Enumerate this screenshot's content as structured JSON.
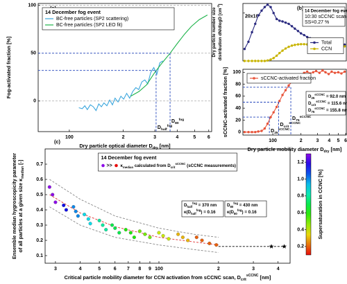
{
  "chart_data": [
    {
      "type": "line",
      "panel_label": "(a)",
      "legend_title": "14 December fog event",
      "legend": "upper left",
      "xlabel": [
        {
          "t": "Dry particle optical diameter "
        },
        {
          "t": "D"
        },
        {
          "t": "dry",
          "s": "sub"
        },
        {
          "t": " [nm]"
        }
      ],
      "ylabel": [
        [
          {
            "t": "Fog-activated fraction [%]"
          }
        ]
      ],
      "xlog": true,
      "xlim": [
        67,
        623
      ],
      "xticks": [
        100,
        {
          "value": 200,
          "label": "2"
        },
        {
          "value": 300,
          "label": "3"
        },
        {
          "value": 400,
          "label": "4"
        },
        {
          "value": 500,
          "label": "5"
        },
        {
          "value": 600,
          "label": "6"
        }
      ],
      "ylim": [
        -32,
        102
      ],
      "yticks": [
        0,
        50,
        100
      ],
      "grid": true,
      "series": [
        {
          "name": "BC-free particles (SP2 scattering)",
          "color": "#3aa6dd",
          "x": [
            113,
            118,
            122,
            126,
            131,
            136,
            141,
            146,
            151,
            156,
            162,
            168,
            174,
            180,
            187,
            194,
            201,
            209,
            217,
            226,
            235,
            244,
            254,
            264,
            274,
            285,
            296,
            308,
            320,
            333
          ],
          "values": [
            -7,
            -8,
            -5,
            -9,
            -4,
            -6,
            -10,
            -3,
            -6,
            -2,
            -5,
            1,
            -4,
            3,
            -1,
            5,
            2,
            8,
            3,
            10,
            14,
            12,
            20,
            22,
            18,
            30,
            35,
            28,
            40,
            42
          ]
        },
        {
          "name": "BC-free particles (SP2 LEO fit)",
          "color": "#1db34a",
          "x": [
            220,
            245,
            270,
            300,
            330,
            365,
            400,
            440,
            480,
            530,
            590
          ],
          "values": [
            5,
            10,
            17,
            30,
            40,
            50,
            60,
            70,
            78,
            85,
            90
          ]
        }
      ],
      "markers": [
        {
          "x": 305,
          "y": 32,
          "label": [
            {
              "t": "D"
            },
            {
              "t": "half",
              "s": "sub"
            },
            {
              "t": "fog",
              "s": "sup"
            }
          ]
        },
        {
          "x": 365,
          "y": 50,
          "label": [
            {
              "t": "D"
            },
            {
              "t": "80",
              "s": "sub"
            },
            {
              "t": "fog",
              "s": "sup"
            }
          ]
        }
      ],
      "marker_color": "#2244bb"
    },
    {
      "type": "line",
      "panel_label": "(b)",
      "legend": "right",
      "ylabel": [
        [
          {
            "t": "Dry particle number size"
          }
        ],
        [
          {
            "t": "distribution dN/dlog"
          },
          {
            "t": "D"
          },
          {
            "t": " [cm"
          },
          {
            "t": "-3",
            "s": "sup"
          },
          {
            "t": "]"
          }
        ]
      ],
      "note": [
        "14 December fog event",
        "10:30 sCCNC scan",
        "SS=0.27 %"
      ],
      "xlog": true,
      "xlim": [
        48,
        609
      ],
      "ylim": [
        0,
        24000
      ],
      "yticks": [
        {
          "value": 20000,
          "label": "20x10³"
        }
      ],
      "series": [
        {
          "name": "Total",
          "color": "#2b2b80",
          "markers": true,
          "x": [
            50,
            55,
            60,
            65,
            70,
            76,
            82,
            88,
            95,
            102,
            110,
            118,
            127,
            137,
            148,
            160,
            172,
            186,
            200,
            216,
            233,
            250,
            270,
            290,
            315,
            340,
            365,
            395,
            425,
            460,
            500,
            540,
            585
          ],
          "values": [
            5000,
            8000,
            12000,
            15500,
            19000,
            21000,
            22500,
            23500,
            22500,
            20000,
            17500,
            16800,
            16500,
            16000,
            15500,
            14500,
            13500,
            12500,
            11500,
            10800,
            10000,
            9500,
            9000,
            8600,
            8300,
            8000,
            7800,
            7500,
            7300,
            7100,
            7000,
            6900,
            6800
          ]
        },
        {
          "name": "CCN",
          "color": "#c8b400",
          "markers": true,
          "x": [
            50,
            55,
            60,
            65,
            70,
            76,
            82,
            88,
            95,
            102,
            110,
            118,
            127,
            137,
            148,
            160,
            172,
            186,
            200,
            216,
            233,
            250,
            270,
            290,
            315,
            340,
            365,
            395,
            425,
            460,
            500,
            540,
            585
          ],
          "values": [
            0,
            0,
            0,
            0,
            0,
            0,
            0,
            200,
            600,
            1200,
            2200,
            3300,
            4300,
            5200,
            5900,
            6400,
            6700,
            6900,
            7000,
            7000,
            6900,
            6800,
            6800,
            6700,
            6700,
            6600,
            6600,
            6500,
            6500,
            6400,
            6300,
            6200,
            6100
          ]
        }
      ]
    },
    {
      "type": "line",
      "legend": "upper left",
      "xlabel": [
        {
          "t": "Dry particle mobility diameter "
        },
        {
          "t": "D"
        },
        {
          "t": "dry",
          "s": "sub"
        },
        {
          "t": "  [nm]"
        }
      ],
      "ylabel": [
        [
          {
            "t": "sCCNC-activated fraction [%]"
          }
        ]
      ],
      "xlog": true,
      "xlim": [
        48,
        609
      ],
      "xticks": [
        100,
        {
          "value": 200,
          "label": "2"
        },
        {
          "value": 300,
          "label": "3"
        },
        {
          "value": 400,
          "label": "4"
        },
        {
          "value": 500,
          "label": "5"
        },
        {
          "value": 600,
          "label": "6"
        }
      ],
      "ylim": [
        -5,
        105
      ],
      "yticks": [
        0,
        20,
        40,
        60,
        80,
        100
      ],
      "series": [
        {
          "name": "sCCNC-activated fraction",
          "color": "#e8543a",
          "markers": true,
          "x": [
            50,
            55,
            60,
            65,
            70,
            76,
            82,
            88,
            95,
            102,
            110,
            118,
            127,
            137,
            148,
            160,
            172,
            186,
            200,
            216,
            233,
            250,
            270,
            290,
            315,
            340,
            365,
            395,
            425,
            460,
            500,
            540,
            585
          ],
          "values": [
            0,
            0,
            0,
            0,
            1,
            2,
            6,
            14,
            25,
            33,
            42,
            52,
            62,
            70,
            78,
            84,
            89,
            93,
            96,
            99,
            101,
            98,
            100,
            102,
            99,
            103,
            100,
            97,
            101,
            99,
            100,
            98,
            101
          ]
        }
      ],
      "markers": [
        {
          "x": 92.0,
          "y": 25,
          "label": [
            {
              "t": "D"
            },
            {
              "t": "25",
              "s": "sub"
            },
            {
              "t": "sCCNC",
              "s": "sup"
            }
          ],
          "box": [
            {
              "t": "D"
            },
            {
              "t": "25",
              "s": "sub"
            },
            {
              "t": "sCCNC",
              "s": "sup"
            },
            {
              "t": " = 92.0 nm"
            }
          ]
        },
        {
          "x": 115.6,
          "y": 50,
          "label": [
            {
              "t": "D"
            },
            {
              "t": "crit",
              "s": "sub"
            },
            {
              "t": "sCCNC",
              "s": "sup"
            }
          ],
          "box": [
            {
              "t": "D"
            },
            {
              "t": "crit",
              "s": "sub"
            },
            {
              "t": "sCCNC",
              "s": "sup"
            },
            {
              "t": " = 115.6 nm"
            }
          ]
        },
        {
          "x": 155.8,
          "y": 75,
          "label": [
            {
              "t": "D"
            },
            {
              "t": "75",
              "s": "sub"
            },
            {
              "t": "sCCNC",
              "s": "sup"
            }
          ],
          "box": [
            {
              "t": "D"
            },
            {
              "t": "75",
              "s": "sub"
            },
            {
              "t": "sCCNC",
              "s": "sup"
            },
            {
              "t": " = 155.8 nm"
            }
          ]
        }
      ],
      "marker_color": "#2244bb"
    },
    {
      "type": "scatter",
      "panel_label": "(c)",
      "legend": "upper center",
      "legend_title": "14 December fog event",
      "legend_symbol": ">>",
      "legend_text": [
        {
          "t": "κ"
        },
        {
          "t": "median",
          "s": "sub"
        },
        {
          "t": " calculated from "
        },
        {
          "t": "D"
        },
        {
          "t": "crit",
          "s": "sub"
        },
        {
          "t": "sCCNC",
          "s": "sup"
        },
        {
          "t": " (sCCNC measurements)"
        }
      ],
      "xlabel": [
        {
          "t": "Critical particle mobility diameter for CCN activation from sCCNC scan, "
        },
        {
          "t": "D"
        },
        {
          "t": "crit",
          "s": "sub"
        },
        {
          "t": "sCCNC",
          "s": "sup"
        },
        {
          "t": "  [nm]"
        }
      ],
      "ylabel": [
        [
          {
            "t": "Ensemble median hygroscopicity parameter"
          }
        ],
        [
          {
            "t": "of all particles at a given size "
          },
          {
            "t": "κ"
          },
          {
            "t": "median",
            "s": "sub"
          },
          {
            "t": " [-]"
          }
        ]
      ],
      "xlog": true,
      "xlim": [
        26.6,
        460
      ],
      "xticks": [
        {
          "value": 30,
          "label": "3"
        },
        {
          "value": 40,
          "label": "4"
        },
        {
          "value": 50,
          "label": "5"
        },
        {
          "value": 60,
          "label": "6"
        },
        {
          "value": 70,
          "label": "7"
        },
        {
          "value": 80,
          "label": "8"
        },
        {
          "value": 90,
          "label": "9"
        },
        100,
        {
          "value": 200,
          "label": "2"
        },
        {
          "value": 300,
          "label": "3"
        },
        {
          "value": 400,
          "label": "4"
        }
      ],
      "ylim": [
        0.05,
        0.8
      ],
      "yticks": [
        0.1,
        0.2,
        0.3,
        0.4,
        0.5,
        0.6,
        0.7
      ],
      "x": [
        28,
        29,
        30,
        33,
        34,
        37,
        38,
        39,
        42,
        44,
        45,
        50,
        52,
        54,
        58,
        60,
        63,
        68,
        72,
        75,
        80,
        85,
        90,
        100,
        105,
        112,
        125,
        132,
        140,
        155,
        165,
        180,
        195
      ],
      "values": [
        0.55,
        0.5,
        0.45,
        0.43,
        0.4,
        0.42,
        0.39,
        0.36,
        0.37,
        0.34,
        0.31,
        0.33,
        0.3,
        0.27,
        0.3,
        0.28,
        0.25,
        0.27,
        0.25,
        0.22,
        0.26,
        0.24,
        0.22,
        0.25,
        0.23,
        0.21,
        0.24,
        0.22,
        0.2,
        0.22,
        0.2,
        0.18,
        0.17
      ],
      "color_values": [
        1.3,
        1.3,
        1.3,
        1.15,
        1.15,
        1.0,
        1.0,
        1.0,
        0.9,
        0.9,
        0.9,
        0.8,
        0.8,
        0.8,
        0.7,
        0.7,
        0.7,
        0.6,
        0.6,
        0.6,
        0.5,
        0.5,
        0.5,
        0.4,
        0.4,
        0.4,
        0.3,
        0.3,
        0.3,
        0.2,
        0.2,
        0.2,
        0.2
      ],
      "colorbar": {
        "label": "Supersaturation in CCNC [%]",
        "lim": [
          0.1,
          1.3
        ],
        "ticks": [
          0.2,
          0.4,
          0.6,
          0.8,
          {
            "value": 1,
            "label": "1.0"
          },
          1.2
        ],
        "hue": [
          0,
          275
        ]
      },
      "fits": [
        {
          "color": "#888888",
          "x": [
            28,
            40,
            60,
            100,
            150,
            200
          ],
          "values": [
            0.6,
            0.47,
            0.36,
            0.28,
            0.24,
            0.22
          ]
        },
        {
          "color": "#e03030",
          "x": [
            28,
            40,
            60,
            100,
            150,
            200
          ],
          "values": [
            0.5,
            0.38,
            0.29,
            0.22,
            0.19,
            0.17
          ]
        },
        {
          "color": "#888888",
          "x": [
            28,
            40,
            60,
            100,
            150,
            200
          ],
          "values": [
            0.42,
            0.3,
            0.22,
            0.17,
            0.14,
            0.12
          ]
        }
      ],
      "threshold_color": "#000000",
      "stars": [
        {
          "x": 370,
          "y": 0.16
        },
        {
          "x": 430,
          "y": 0.16
        }
      ],
      "annotations": [
        [
          [
            {
              "t": "D"
            },
            {
              "t": "half",
              "s": "sub"
            },
            {
              "t": "fog",
              "s": "sup"
            },
            {
              "t": " = 370 nm"
            }
          ],
          [
            {
              "t": "κ("
            },
            {
              "t": "D"
            },
            {
              "t": "half",
              "s": "sub"
            },
            {
              "t": "fog",
              "s": "sup"
            },
            {
              "t": ") = 0.16"
            }
          ]
        ],
        [
          [
            {
              "t": "D"
            },
            {
              "t": "80",
              "s": "sub"
            },
            {
              "t": "fog",
              "s": "sup"
            },
            {
              "t": " = 430 nm"
            }
          ],
          [
            {
              "t": "κ("
            },
            {
              "t": "D"
            },
            {
              "t": "80",
              "s": "sub"
            },
            {
              "t": "fog",
              "s": "sup"
            },
            {
              "t": ") = 0.16"
            }
          ]
        ]
      ]
    }
  ]
}
